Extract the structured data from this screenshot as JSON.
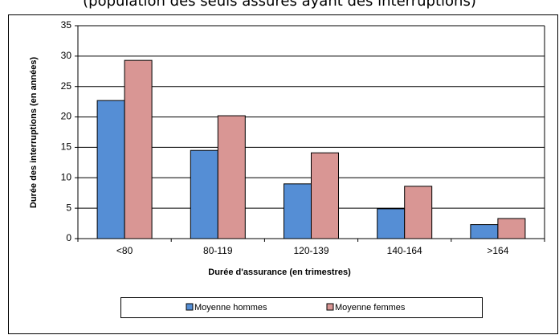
{
  "chart_data": {
    "type": "bar",
    "subtitle": "(population des seuls assurés ayant des interruptions)",
    "x_label": "Durée d'assurance (en trimestres)",
    "y_label": "Durée des interruptions (en années)",
    "categories": [
      "<80",
      "80-119",
      "120-139",
      "140-164",
      ">164"
    ],
    "series": [
      {
        "name": "Moyenne hommes",
        "color": "#558ed5",
        "values": [
          22.7,
          14.5,
          9.0,
          4.9,
          2.3
        ]
      },
      {
        "name": "Moyenne femmes",
        "color": "#d99694",
        "values": [
          29.3,
          20.2,
          14.1,
          8.6,
          3.3
        ]
      }
    ],
    "ylim": [
      0,
      35
    ],
    "yticks": [
      0,
      5,
      10,
      15,
      20,
      25,
      30,
      35
    ],
    "grid": true,
    "legend": "bottom"
  }
}
